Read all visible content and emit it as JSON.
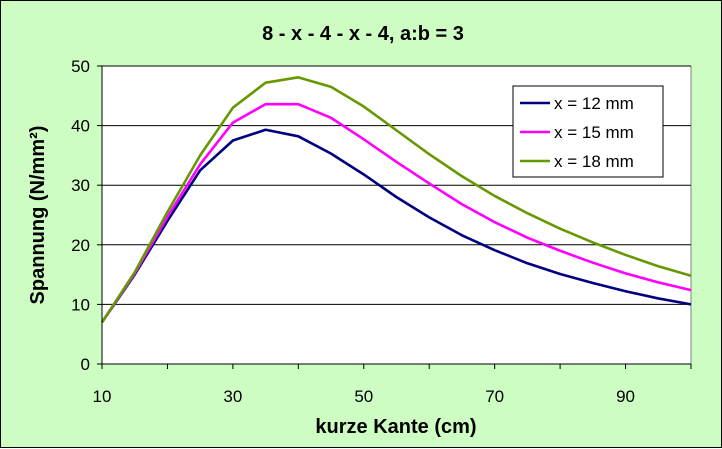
{
  "chart_data": {
    "type": "line",
    "title": "8 - x - 4 - x - 4, a:b = 3",
    "xlabel": "kurze Kante (cm)",
    "ylabel": "Spannung (N/mm²)",
    "xlim": [
      10,
      100
    ],
    "ylim": [
      0,
      50
    ],
    "x_ticks": [
      10,
      30,
      50,
      70,
      90
    ],
    "y_ticks": [
      0,
      10,
      20,
      30,
      40,
      50
    ],
    "grid": "horizontal",
    "legend_position": "top-right",
    "x": [
      10,
      15,
      20,
      25,
      30,
      35,
      40,
      45,
      50,
      55,
      60,
      65,
      70,
      75,
      80,
      85,
      90,
      95,
      100
    ],
    "series": [
      {
        "name": "x = 12 mm",
        "color": "#000080",
        "values": [
          7,
          15,
          24,
          32.5,
          37.5,
          39.3,
          38.2,
          35.3,
          31.8,
          28,
          24.6,
          21.6,
          19.1,
          16.9,
          15.1,
          13.6,
          12.2,
          11,
          10
        ]
      },
      {
        "name": "x = 15 mm",
        "color": "#ff00ff",
        "values": [
          7,
          15.2,
          24.7,
          33.5,
          40.5,
          43.6,
          43.6,
          41.3,
          37.7,
          33.9,
          30.3,
          26.8,
          23.8,
          21.2,
          19,
          17,
          15.2,
          13.7,
          12.4
        ]
      },
      {
        "name": "x = 18 mm",
        "color": "#669900",
        "values": [
          7,
          15.4,
          25.5,
          35,
          43,
          47.2,
          48.1,
          46.5,
          43.2,
          39.2,
          35.2,
          31.5,
          28.2,
          25.3,
          22.7,
          20.4,
          18.3,
          16.4,
          14.8
        ]
      }
    ]
  }
}
